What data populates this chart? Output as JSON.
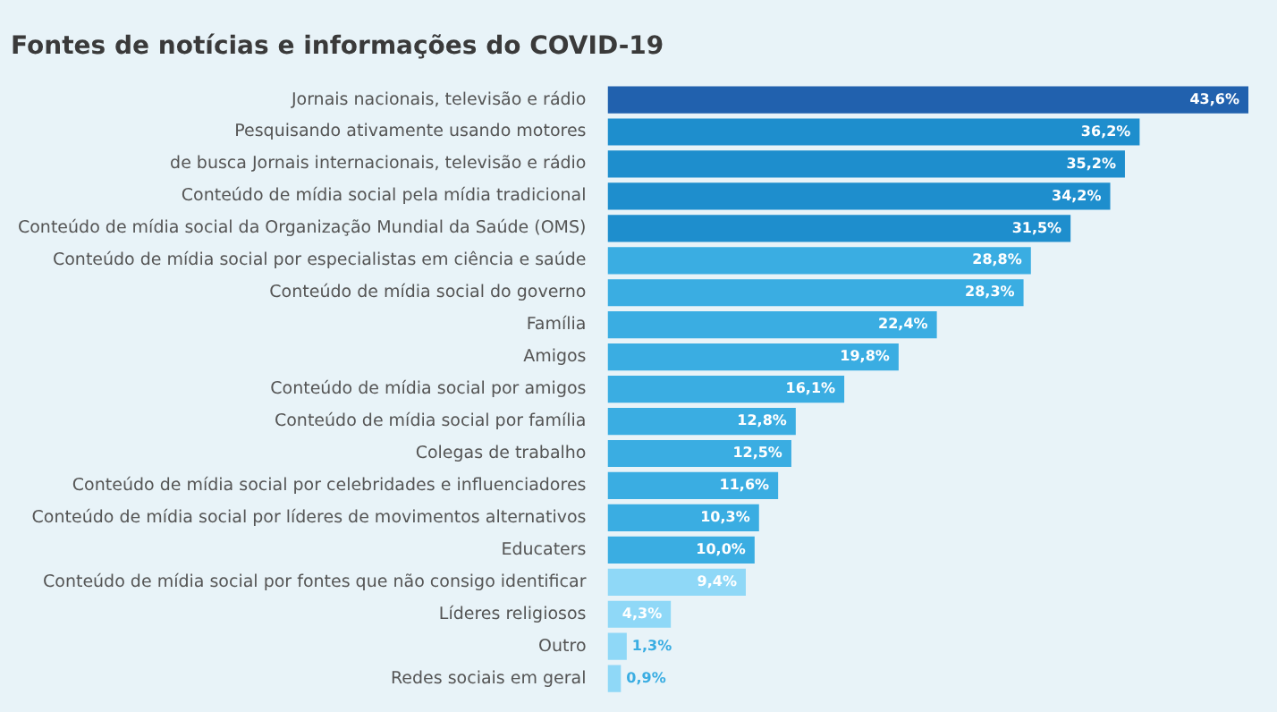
{
  "chart_data": {
    "type": "bar",
    "orientation": "horizontal",
    "title": "Fontes de notícias e informações do COVID-19",
    "categories": [
      "Jornais nacionais, televisão e rádio",
      "Pesquisando ativamente usando motores",
      "de busca Jornais internacionais, televisão e rádio",
      "Conteúdo de mídia social pela mídia tradicional",
      "Conteúdo de mídia social da Organização Mundial da Saúde (OMS)",
      "Conteúdo de mídia social por especialistas em ciência e saúde",
      "Conteúdo de mídia social do governo",
      "Família",
      "Amigos",
      "Conteúdo de mídia social por amigos",
      "Conteúdo de mídia social por família",
      "Colegas de trabalho",
      "Conteúdo de mídia social por celebridades e influenciadores",
      "Conteúdo de mídia social por líderes de movimentos alternativos",
      "Educaters",
      "Conteúdo de mídia social por fontes que não consigo identificar",
      "Líderes religiosos",
      "Outro",
      "Redes sociais em geral"
    ],
    "values": [
      43.6,
      36.2,
      35.2,
      34.2,
      31.5,
      28.8,
      28.3,
      22.4,
      19.8,
      16.1,
      12.8,
      12.5,
      11.6,
      10.3,
      10.0,
      9.4,
      4.3,
      1.3,
      0.9
    ],
    "value_labels": [
      "43,6%",
      "36,2%",
      "35,2%",
      "34,2%",
      "31,5%",
      "28,8%",
      "28,3%",
      "22,4%",
      "19,8%",
      "16,1%",
      "12,8%",
      "12,5%",
      "11,6%",
      "10,3%",
      "10,0%",
      "9,4%",
      "4,3%",
      "1,3%",
      "0,9%"
    ],
    "colors": [
      "#2161ae",
      "#1e8ecd",
      "#1e8ecd",
      "#1e8ecd",
      "#1e8ecd",
      "#3aade2",
      "#3aade2",
      "#3aade2",
      "#3aade2",
      "#3aade2",
      "#3aade2",
      "#3aade2",
      "#3aade2",
      "#3aade2",
      "#3aade2",
      "#8fd8f7",
      "#8fd8f7",
      "#8fd8f7",
      "#8fd8f7"
    ],
    "legend": false
  }
}
